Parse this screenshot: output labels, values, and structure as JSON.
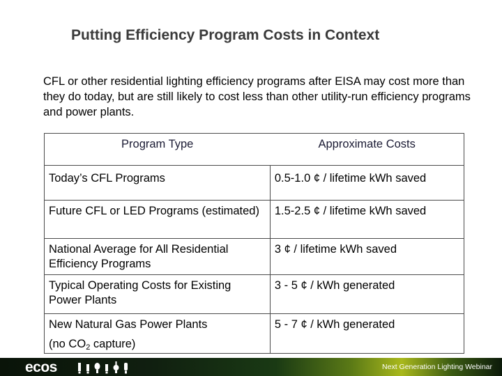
{
  "slide": {
    "title": "Putting Efficiency Program Costs in Context",
    "intro": "CFL or other residential lighting efficiency programs after EISA may cost more than they do today, but are still likely to cost less than other utility-run efficiency programs and power plants."
  },
  "table": {
    "headers": [
      "Program Type",
      "Approximate Costs"
    ],
    "rows": [
      {
        "type": "Today’s CFL Programs",
        "cost": "0.5-1.0 ¢ / lifetime kWh saved"
      },
      {
        "type": "Future CFL or LED Programs (estimated)",
        "cost": "1.5-2.5 ¢ / lifetime kWh saved"
      },
      {
        "type": "National Average for All Residential Efficiency Programs",
        "cost": "3 ¢ / lifetime kWh saved"
      },
      {
        "type": "Typical Operating Costs for Existing Power Plants",
        "cost": "3 - 5 ¢ / kWh generated"
      },
      {
        "type_line1": "New Natural Gas Power Plants",
        "type_line2_pre": "(no CO",
        "type_line2_sub": "2",
        "type_line2_post": " capture)",
        "cost": "5 - 7 ¢ / kWh generated"
      }
    ]
  },
  "footer": {
    "logo": "ecos",
    "text": "Next Generation Lighting Webinar",
    "bulb_icons": [
      "bulb-icon",
      "bulb-icon",
      "bulb-icon",
      "bulb-icon",
      "bulb-icon",
      "bulb-icon"
    ]
  }
}
